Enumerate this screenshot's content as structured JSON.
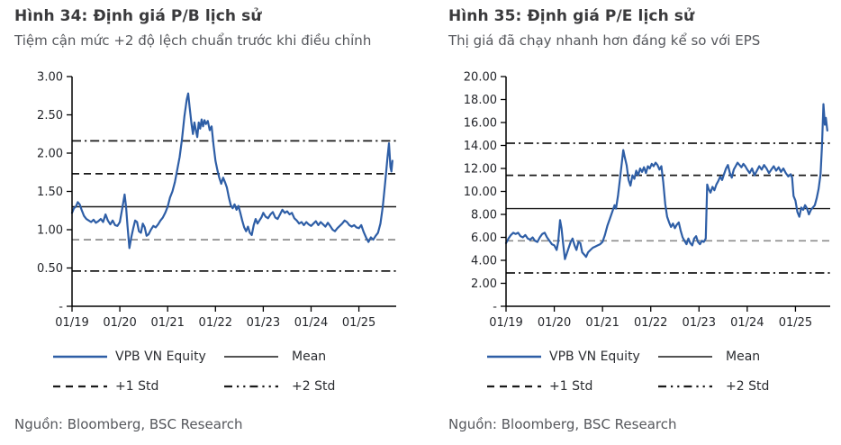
{
  "colors": {
    "series_line": "#2e5ea6",
    "stat_line": "#1a1a1a",
    "minus1_line": "#8c8c8c",
    "axis_line": "#000000",
    "axis_text": "#24262b",
    "title_text": "#3a3a3c",
    "subtitle_text": "#55575c"
  },
  "figures": [
    {
      "title": "Hình 34: Định giá P/B lịch sử",
      "subtitle": "Tiệm cận mức +2 độ lệch chuẩn trước khi điều chỉnh",
      "source": "Nguồn: Bloomberg, BSC Research",
      "legend": {
        "series": "VPB VN Equity",
        "mean": "Mean",
        "plus1": "+1 Std",
        "plus2": "+2 Std"
      }
    },
    {
      "title": "Hình 35: Định giá P/E lịch sử",
      "subtitle": "Thị giá đã chạy nhanh hơn đáng kể so với EPS",
      "source": "Nguồn: Bloomberg, BSC Research",
      "legend": {
        "series": "VPB VN Equity",
        "mean": "Mean",
        "plus1": "+1 Std",
        "plus2": "+2 Std"
      }
    }
  ],
  "chart_data": [
    {
      "type": "line",
      "title": "Hình 34: Định giá P/B lịch sử",
      "series_name": "VPB VN Equity",
      "x_labels": [
        "01/19",
        "01/20",
        "01/21",
        "01/22",
        "01/23",
        "01/24",
        "01/25"
      ],
      "x_tick_positions": [
        2019,
        2020,
        2021,
        2022,
        2023,
        2024,
        2025
      ],
      "x_range": [
        2019.0,
        2025.78
      ],
      "ylim": [
        0,
        3.0
      ],
      "y_tick_values": [
        3.0,
        2.5,
        2.0,
        1.5,
        1.0,
        0.5,
        0
      ],
      "y_tick_labels": [
        "3.00",
        "2.50",
        "2.00",
        "1.50",
        "1.00",
        "0.50",
        "-"
      ],
      "mean": 1.3,
      "std_lines": {
        "plus1": 1.73,
        "plus2": 2.16,
        "minus1": 0.87,
        "minus2": 0.46
      },
      "legend_position": "bottom",
      "grid": false,
      "points": [
        [
          2019.0,
          1.22
        ],
        [
          2019.04,
          1.28
        ],
        [
          2019.08,
          1.3
        ],
        [
          2019.12,
          1.36
        ],
        [
          2019.16,
          1.33
        ],
        [
          2019.2,
          1.26
        ],
        [
          2019.25,
          1.18
        ],
        [
          2019.3,
          1.14
        ],
        [
          2019.35,
          1.12
        ],
        [
          2019.4,
          1.1
        ],
        [
          2019.45,
          1.13
        ],
        [
          2019.5,
          1.09
        ],
        [
          2019.55,
          1.11
        ],
        [
          2019.6,
          1.14
        ],
        [
          2019.65,
          1.1
        ],
        [
          2019.7,
          1.2
        ],
        [
          2019.75,
          1.12
        ],
        [
          2019.8,
          1.07
        ],
        [
          2019.85,
          1.12
        ],
        [
          2019.9,
          1.06
        ],
        [
          2019.95,
          1.05
        ],
        [
          2020.0,
          1.1
        ],
        [
          2020.05,
          1.28
        ],
        [
          2020.1,
          1.46
        ],
        [
          2020.13,
          1.3
        ],
        [
          2020.16,
          1.05
        ],
        [
          2020.2,
          0.76
        ],
        [
          2020.24,
          0.9
        ],
        [
          2020.28,
          1.02
        ],
        [
          2020.32,
          1.12
        ],
        [
          2020.36,
          1.1
        ],
        [
          2020.4,
          0.98
        ],
        [
          2020.44,
          0.96
        ],
        [
          2020.48,
          1.08
        ],
        [
          2020.52,
          1.03
        ],
        [
          2020.56,
          0.92
        ],
        [
          2020.6,
          0.94
        ],
        [
          2020.65,
          1.0
        ],
        [
          2020.7,
          1.05
        ],
        [
          2020.75,
          1.03
        ],
        [
          2020.8,
          1.07
        ],
        [
          2020.85,
          1.12
        ],
        [
          2020.9,
          1.16
        ],
        [
          2020.95,
          1.22
        ],
        [
          2021.0,
          1.3
        ],
        [
          2021.05,
          1.42
        ],
        [
          2021.1,
          1.5
        ],
        [
          2021.15,
          1.62
        ],
        [
          2021.2,
          1.78
        ],
        [
          2021.25,
          1.95
        ],
        [
          2021.3,
          2.18
        ],
        [
          2021.35,
          2.48
        ],
        [
          2021.4,
          2.7
        ],
        [
          2021.43,
          2.78
        ],
        [
          2021.46,
          2.6
        ],
        [
          2021.5,
          2.38
        ],
        [
          2021.53,
          2.25
        ],
        [
          2021.56,
          2.4
        ],
        [
          2021.59,
          2.3
        ],
        [
          2021.62,
          2.21
        ],
        [
          2021.65,
          2.4
        ],
        [
          2021.68,
          2.32
        ],
        [
          2021.71,
          2.44
        ],
        [
          2021.74,
          2.35
        ],
        [
          2021.77,
          2.43
        ],
        [
          2021.8,
          2.38
        ],
        [
          2021.84,
          2.42
        ],
        [
          2021.88,
          2.3
        ],
        [
          2021.92,
          2.35
        ],
        [
          2021.96,
          2.1
        ],
        [
          2022.0,
          1.9
        ],
        [
          2022.04,
          1.78
        ],
        [
          2022.08,
          1.68
        ],
        [
          2022.12,
          1.6
        ],
        [
          2022.16,
          1.68
        ],
        [
          2022.2,
          1.62
        ],
        [
          2022.24,
          1.55
        ],
        [
          2022.28,
          1.42
        ],
        [
          2022.32,
          1.32
        ],
        [
          2022.36,
          1.28
        ],
        [
          2022.4,
          1.33
        ],
        [
          2022.44,
          1.26
        ],
        [
          2022.48,
          1.31
        ],
        [
          2022.52,
          1.22
        ],
        [
          2022.56,
          1.12
        ],
        [
          2022.6,
          1.03
        ],
        [
          2022.64,
          0.98
        ],
        [
          2022.68,
          1.04
        ],
        [
          2022.72,
          0.96
        ],
        [
          2022.76,
          0.93
        ],
        [
          2022.8,
          1.06
        ],
        [
          2022.84,
          1.14
        ],
        [
          2022.88,
          1.08
        ],
        [
          2022.92,
          1.12
        ],
        [
          2022.96,
          1.16
        ],
        [
          2023.0,
          1.22
        ],
        [
          2023.05,
          1.17
        ],
        [
          2023.1,
          1.15
        ],
        [
          2023.15,
          1.2
        ],
        [
          2023.2,
          1.23
        ],
        [
          2023.25,
          1.16
        ],
        [
          2023.3,
          1.14
        ],
        [
          2023.35,
          1.2
        ],
        [
          2023.4,
          1.26
        ],
        [
          2023.45,
          1.22
        ],
        [
          2023.5,
          1.24
        ],
        [
          2023.55,
          1.2
        ],
        [
          2023.6,
          1.22
        ],
        [
          2023.65,
          1.15
        ],
        [
          2023.7,
          1.12
        ],
        [
          2023.75,
          1.08
        ],
        [
          2023.8,
          1.1
        ],
        [
          2023.85,
          1.06
        ],
        [
          2023.9,
          1.1
        ],
        [
          2023.95,
          1.07
        ],
        [
          2024.0,
          1.05
        ],
        [
          2024.05,
          1.08
        ],
        [
          2024.1,
          1.11
        ],
        [
          2024.15,
          1.06
        ],
        [
          2024.2,
          1.1
        ],
        [
          2024.25,
          1.07
        ],
        [
          2024.3,
          1.04
        ],
        [
          2024.35,
          1.09
        ],
        [
          2024.4,
          1.05
        ],
        [
          2024.45,
          1.0
        ],
        [
          2024.5,
          0.98
        ],
        [
          2024.55,
          1.02
        ],
        [
          2024.6,
          1.05
        ],
        [
          2024.65,
          1.08
        ],
        [
          2024.7,
          1.12
        ],
        [
          2024.75,
          1.1
        ],
        [
          2024.8,
          1.06
        ],
        [
          2024.85,
          1.04
        ],
        [
          2024.9,
          1.06
        ],
        [
          2024.95,
          1.03
        ],
        [
          2025.0,
          1.02
        ],
        [
          2025.05,
          1.06
        ],
        [
          2025.1,
          0.97
        ],
        [
          2025.15,
          0.9
        ],
        [
          2025.2,
          0.84
        ],
        [
          2025.25,
          0.9
        ],
        [
          2025.3,
          0.87
        ],
        [
          2025.35,
          0.92
        ],
        [
          2025.4,
          0.96
        ],
        [
          2025.45,
          1.08
        ],
        [
          2025.5,
          1.3
        ],
        [
          2025.55,
          1.62
        ],
        [
          2025.6,
          1.95
        ],
        [
          2025.63,
          2.13
        ],
        [
          2025.66,
          1.82
        ],
        [
          2025.68,
          1.76
        ],
        [
          2025.7,
          1.9
        ]
      ]
    },
    {
      "type": "line",
      "title": "Hình 35: Định giá P/E lịch sử",
      "series_name": "VPB VN Equity",
      "x_labels": [
        "01/19",
        "01/20",
        "01/21",
        "01/22",
        "01/23",
        "01/24",
        "01/25"
      ],
      "x_tick_positions": [
        2019,
        2020,
        2021,
        2022,
        2023,
        2024,
        2025
      ],
      "x_range": [
        2019.0,
        2025.72
      ],
      "ylim": [
        0,
        20.0
      ],
      "y_tick_values": [
        20,
        18,
        16,
        14,
        12,
        10,
        8,
        6,
        4,
        2,
        0
      ],
      "y_tick_labels": [
        "20.00",
        "18.00",
        "16.00",
        "14.00",
        "12.00",
        "10.00",
        "8.00",
        "6.00",
        "4.00",
        "2.00",
        "-"
      ],
      "mean": 8.5,
      "std_lines": {
        "plus1": 11.4,
        "plus2": 14.2,
        "minus1": 5.7,
        "minus2": 2.9
      },
      "legend_position": "bottom",
      "grid": false,
      "points": [
        [
          2019.0,
          5.5
        ],
        [
          2019.05,
          5.9
        ],
        [
          2019.1,
          6.2
        ],
        [
          2019.15,
          6.4
        ],
        [
          2019.2,
          6.3
        ],
        [
          2019.25,
          6.4
        ],
        [
          2019.3,
          6.1
        ],
        [
          2019.35,
          6.0
        ],
        [
          2019.4,
          6.2
        ],
        [
          2019.45,
          5.9
        ],
        [
          2019.5,
          5.8
        ],
        [
          2019.55,
          6.0
        ],
        [
          2019.6,
          5.7
        ],
        [
          2019.65,
          5.6
        ],
        [
          2019.7,
          6.0
        ],
        [
          2019.75,
          6.3
        ],
        [
          2019.8,
          6.4
        ],
        [
          2019.85,
          6.0
        ],
        [
          2019.9,
          5.7
        ],
        [
          2019.95,
          5.4
        ],
        [
          2020.0,
          5.3
        ],
        [
          2020.05,
          4.9
        ],
        [
          2020.08,
          5.6
        ],
        [
          2020.12,
          7.5
        ],
        [
          2020.15,
          6.8
        ],
        [
          2020.18,
          5.6
        ],
        [
          2020.22,
          4.1
        ],
        [
          2020.26,
          4.6
        ],
        [
          2020.3,
          5.1
        ],
        [
          2020.34,
          5.6
        ],
        [
          2020.38,
          5.9
        ],
        [
          2020.42,
          5.3
        ],
        [
          2020.46,
          4.9
        ],
        [
          2020.5,
          5.6
        ],
        [
          2020.54,
          5.5
        ],
        [
          2020.58,
          4.7
        ],
        [
          2020.62,
          4.5
        ],
        [
          2020.66,
          4.3
        ],
        [
          2020.7,
          4.7
        ],
        [
          2020.75,
          4.9
        ],
        [
          2020.8,
          5.1
        ],
        [
          2020.85,
          5.2
        ],
        [
          2020.9,
          5.3
        ],
        [
          2020.95,
          5.4
        ],
        [
          2021.0,
          5.6
        ],
        [
          2021.05,
          6.2
        ],
        [
          2021.1,
          7.0
        ],
        [
          2021.15,
          7.6
        ],
        [
          2021.2,
          8.2
        ],
        [
          2021.25,
          8.8
        ],
        [
          2021.28,
          8.5
        ],
        [
          2021.32,
          9.6
        ],
        [
          2021.36,
          11.0
        ],
        [
          2021.4,
          12.5
        ],
        [
          2021.43,
          13.6
        ],
        [
          2021.46,
          13.0
        ],
        [
          2021.5,
          12.3
        ],
        [
          2021.54,
          11.0
        ],
        [
          2021.58,
          10.5
        ],
        [
          2021.62,
          11.4
        ],
        [
          2021.66,
          11.1
        ],
        [
          2021.7,
          11.8
        ],
        [
          2021.74,
          11.4
        ],
        [
          2021.78,
          12.0
        ],
        [
          2021.82,
          11.7
        ],
        [
          2021.86,
          12.1
        ],
        [
          2021.9,
          11.6
        ],
        [
          2021.94,
          12.2
        ],
        [
          2021.98,
          12.0
        ],
        [
          2022.02,
          12.4
        ],
        [
          2022.06,
          12.2
        ],
        [
          2022.1,
          12.5
        ],
        [
          2022.14,
          12.3
        ],
        [
          2022.18,
          11.9
        ],
        [
          2022.22,
          12.2
        ],
        [
          2022.26,
          10.8
        ],
        [
          2022.3,
          8.9
        ],
        [
          2022.34,
          7.8
        ],
        [
          2022.38,
          7.3
        ],
        [
          2022.42,
          6.9
        ],
        [
          2022.46,
          7.2
        ],
        [
          2022.5,
          6.8
        ],
        [
          2022.54,
          7.1
        ],
        [
          2022.58,
          7.3
        ],
        [
          2022.62,
          6.6
        ],
        [
          2022.66,
          6.0
        ],
        [
          2022.7,
          5.7
        ],
        [
          2022.74,
          5.4
        ],
        [
          2022.78,
          5.9
        ],
        [
          2022.82,
          5.5
        ],
        [
          2022.86,
          5.3
        ],
        [
          2022.9,
          5.9
        ],
        [
          2022.94,
          6.1
        ],
        [
          2022.98,
          5.6
        ],
        [
          2023.02,
          5.4
        ],
        [
          2023.06,
          5.7
        ],
        [
          2023.1,
          5.6
        ],
        [
          2023.14,
          5.9
        ],
        [
          2023.17,
          10.6
        ],
        [
          2023.2,
          10.2
        ],
        [
          2023.24,
          9.9
        ],
        [
          2023.28,
          10.4
        ],
        [
          2023.32,
          10.1
        ],
        [
          2023.36,
          10.6
        ],
        [
          2023.4,
          10.9
        ],
        [
          2023.44,
          11.3
        ],
        [
          2023.48,
          11.0
        ],
        [
          2023.52,
          11.5
        ],
        [
          2023.56,
          12.0
        ],
        [
          2023.6,
          12.3
        ],
        [
          2023.64,
          11.6
        ],
        [
          2023.68,
          11.2
        ],
        [
          2023.72,
          11.9
        ],
        [
          2023.76,
          12.2
        ],
        [
          2023.8,
          12.5
        ],
        [
          2023.84,
          12.3
        ],
        [
          2023.88,
          12.1
        ],
        [
          2023.92,
          12.4
        ],
        [
          2023.96,
          12.2
        ],
        [
          2024.0,
          11.9
        ],
        [
          2024.05,
          11.6
        ],
        [
          2024.1,
          12.0
        ],
        [
          2024.15,
          11.4
        ],
        [
          2024.2,
          11.8
        ],
        [
          2024.25,
          12.2
        ],
        [
          2024.3,
          11.9
        ],
        [
          2024.35,
          12.3
        ],
        [
          2024.4,
          12.0
        ],
        [
          2024.45,
          11.6
        ],
        [
          2024.5,
          11.9
        ],
        [
          2024.55,
          12.2
        ],
        [
          2024.6,
          11.8
        ],
        [
          2024.65,
          12.1
        ],
        [
          2024.7,
          11.7
        ],
        [
          2024.75,
          12.0
        ],
        [
          2024.8,
          11.6
        ],
        [
          2024.85,
          11.3
        ],
        [
          2024.9,
          11.5
        ],
        [
          2024.93,
          11.2
        ],
        [
          2024.96,
          9.6
        ],
        [
          2025.0,
          9.2
        ],
        [
          2025.04,
          8.2
        ],
        [
          2025.08,
          7.8
        ],
        [
          2025.12,
          8.6
        ],
        [
          2025.16,
          8.4
        ],
        [
          2025.2,
          8.8
        ],
        [
          2025.24,
          8.5
        ],
        [
          2025.28,
          8.0
        ],
        [
          2025.32,
          8.4
        ],
        [
          2025.36,
          8.6
        ],
        [
          2025.4,
          8.8
        ],
        [
          2025.44,
          9.4
        ],
        [
          2025.48,
          10.2
        ],
        [
          2025.52,
          11.5
        ],
        [
          2025.55,
          14.0
        ],
        [
          2025.58,
          17.6
        ],
        [
          2025.61,
          15.8
        ],
        [
          2025.63,
          16.4
        ],
        [
          2025.66,
          15.3
        ]
      ]
    }
  ]
}
